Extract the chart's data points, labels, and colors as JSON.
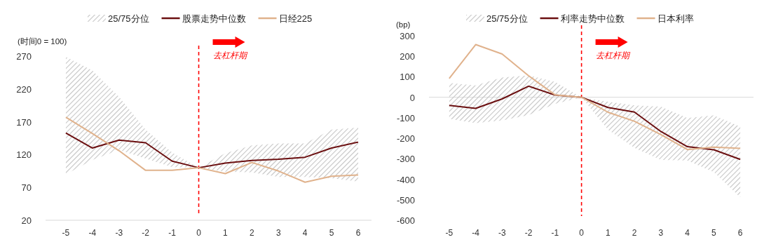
{
  "chart_data": [
    {
      "type": "line",
      "ylabel": "(时间0 = 100)",
      "categories": [
        "-5",
        "-4",
        "-3",
        "-2",
        "-1",
        "0",
        "1",
        "2",
        "3",
        "4",
        "5",
        "6"
      ],
      "ylim": [
        20,
        270
      ],
      "yticks": [
        20,
        70,
        120,
        170,
        220,
        270
      ],
      "legend": "top",
      "series": [
        {
          "name": "股票走势中位数",
          "type": "line",
          "color": "#6b0f10",
          "values": [
            153,
            130,
            142,
            138,
            110,
            100,
            107,
            111,
            113,
            116,
            130,
            139
          ],
          "lower": [
            90,
            112,
            127,
            114,
            101,
            100,
            94,
            93,
            86,
            86,
            84,
            79
          ],
          "upper": [
            269,
            248,
            208,
            158,
            123,
            100,
            122,
            134,
            137,
            137,
            158,
            161
          ]
        },
        {
          "name": "日经225",
          "type": "line",
          "color": "#e0b28c",
          "values": [
            177,
            152,
            126,
            96,
            96,
            100,
            91,
            108,
            95,
            78,
            87,
            89
          ]
        }
      ],
      "ref_lines": [
        {
          "axis": "x",
          "value": "0",
          "color": "#ff0000",
          "line_style": "dashed"
        }
      ],
      "annotations": [
        "25/75分位",
        "去杠杆期"
      ]
    },
    {
      "type": "line",
      "ylabel": "(bp)",
      "categories": [
        "-5",
        "-4",
        "-3",
        "-2",
        "-1",
        "0",
        "1",
        "2",
        "3",
        "4",
        "5",
        "6"
      ],
      "ylim": [
        -600,
        300
      ],
      "yticks": [
        -600,
        -500,
        -400,
        -300,
        -200,
        -100,
        0,
        100,
        200,
        300
      ],
      "legend": "top",
      "series": [
        {
          "name": "利率走势中位数",
          "type": "line",
          "color": "#6b0f10",
          "values": [
            -40,
            -54,
            -8,
            54,
            11,
            0,
            -50,
            -72,
            -167,
            -241,
            -256,
            -303
          ],
          "lower": [
            -105,
            -126,
            -113,
            -87,
            -32,
            0,
            -158,
            -247,
            -306,
            -308,
            -365,
            -488
          ],
          "upper": [
            70,
            58,
            96,
            107,
            75,
            0,
            -22,
            -40,
            -46,
            -101,
            -88,
            -143
          ]
        },
        {
          "name": "日本利率",
          "type": "line",
          "color": "#e0b28c",
          "values": [
            92,
            257,
            211,
            105,
            12,
            0,
            -73,
            -117,
            -182,
            -255,
            -243,
            -249
          ]
        }
      ],
      "ref_lines": [
        {
          "axis": "x",
          "value": "0",
          "color": "#ff0000",
          "line_style": "dashed"
        }
      ],
      "annotations": [
        "25/75分位",
        "去杠杆期"
      ]
    }
  ]
}
